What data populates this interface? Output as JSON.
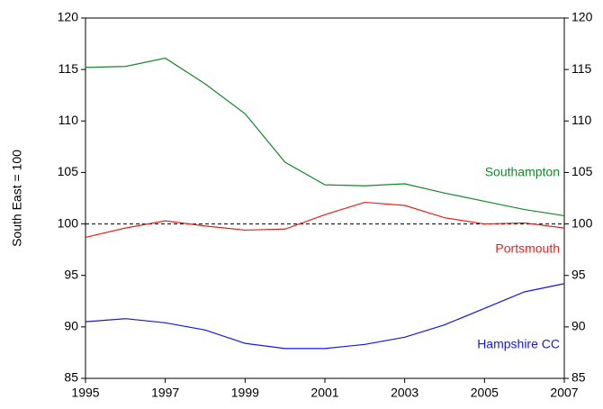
{
  "chart_data": {
    "type": "line",
    "y_label": "South East = 100",
    "x": [
      1995,
      1996,
      1997,
      1998,
      1999,
      2000,
      2001,
      2002,
      2003,
      2004,
      2005,
      2006,
      2007
    ],
    "series": [
      {
        "name": "Southampton",
        "color": "#108a2a",
        "values": [
          115.2,
          115.3,
          116.1,
          113.6,
          110.7,
          106.0,
          103.8,
          103.7,
          103.9,
          103.0,
          102.2,
          101.4,
          100.8
        ]
      },
      {
        "name": "Portsmouth",
        "color": "#e8201c",
        "values": [
          98.7,
          99.6,
          100.3,
          99.8,
          99.4,
          99.5,
          100.9,
          102.1,
          101.8,
          100.6,
          100.0,
          100.1,
          99.6
        ]
      },
      {
        "name": "Hampshire CC",
        "color": "#1616e0",
        "values": [
          90.5,
          90.8,
          90.4,
          89.7,
          88.4,
          87.9,
          87.9,
          88.3,
          89.0,
          90.2,
          91.8,
          93.4,
          94.2
        ]
      }
    ],
    "reference_line": 100,
    "xlim": [
      1995,
      2007
    ],
    "xticks": [
      1995,
      1997,
      1999,
      2001,
      2003,
      2005,
      2007
    ],
    "ylim": [
      85,
      120
    ],
    "yticks": [
      85,
      90,
      95,
      100,
      105,
      110,
      115,
      120
    ],
    "y2lim": [
      85,
      120
    ],
    "y2ticks": [
      85,
      90,
      95,
      100,
      105,
      110,
      115,
      120
    ],
    "grid": false
  }
}
